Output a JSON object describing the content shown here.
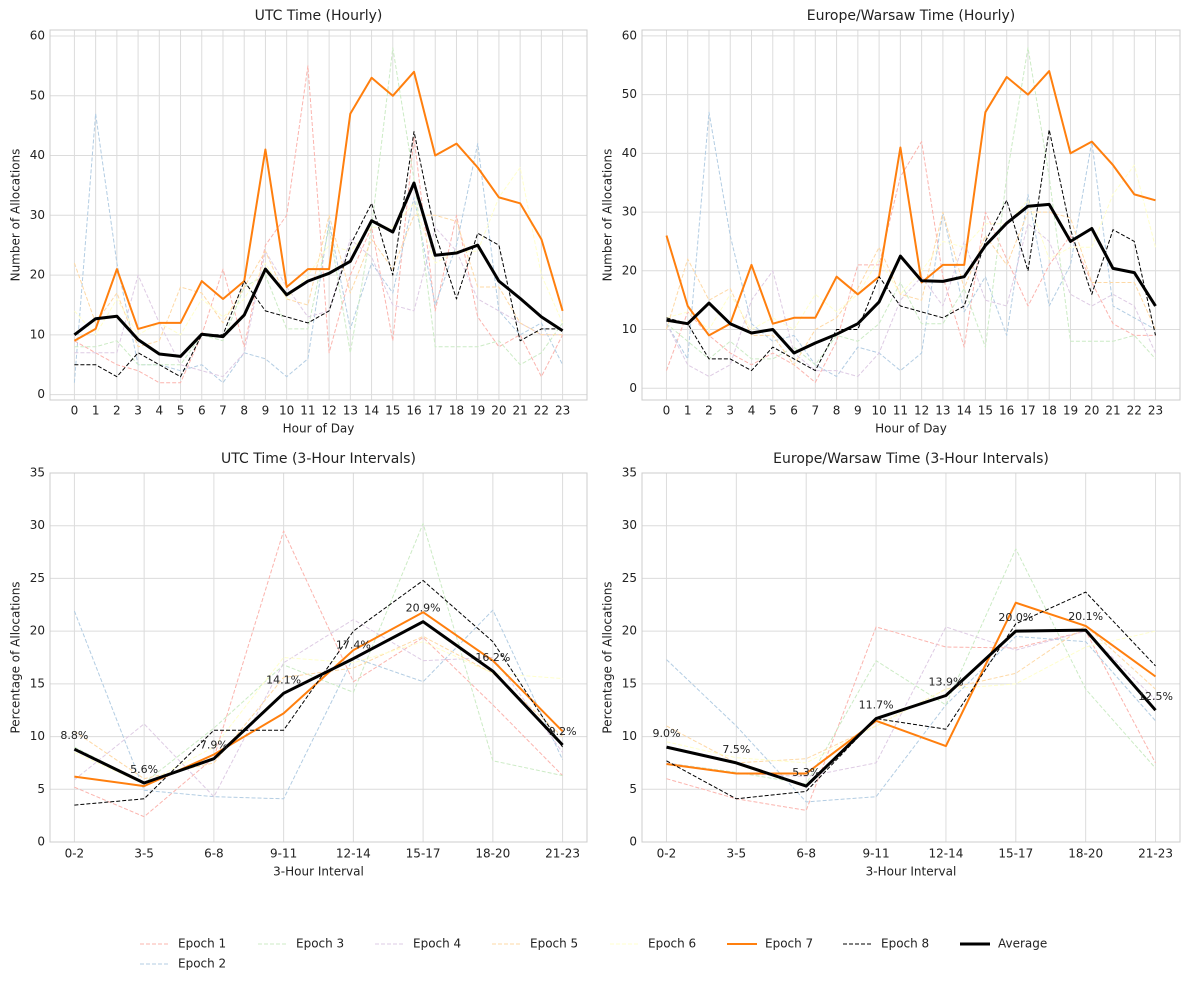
{
  "chart_data": [
    {
      "type": "line",
      "title": "UTC Time (Hourly)",
      "xlabel": "Hour of Day",
      "ylabel": "Number of Allocations",
      "x": [
        0,
        1,
        2,
        3,
        4,
        5,
        6,
        7,
        8,
        9,
        10,
        11,
        12,
        13,
        14,
        15,
        16,
        17,
        18,
        19,
        20,
        21,
        22,
        23
      ],
      "xlim": [
        -1.15,
        24.15
      ],
      "xticks": [
        0,
        1,
        2,
        3,
        4,
        5,
        6,
        7,
        8,
        9,
        10,
        11,
        12,
        13,
        14,
        15,
        16,
        17,
        18,
        19,
        20,
        21,
        22,
        23
      ],
      "ylim": [
        -0.9,
        61
      ],
      "yticks": [
        0,
        10,
        20,
        30,
        40,
        50,
        60
      ],
      "grid": true,
      "legend": "lower center",
      "series": [
        {
          "name": "Epoch 1",
          "color": "#fbb4ae",
          "linestyle": "dashed",
          "linewidth": 1,
          "values": [
            9,
            7,
            5,
            4,
            2,
            2,
            10,
            21,
            8,
            25,
            30,
            55,
            7,
            20,
            28,
            9,
            43,
            14,
            30,
            13,
            8,
            10,
            3,
            10
          ]
        },
        {
          "name": "Epoch 2",
          "color": "#b3cde3",
          "linestyle": "dashed",
          "linewidth": 1,
          "values": [
            2,
            47,
            22,
            5,
            5,
            4,
            5,
            2,
            7,
            6,
            3,
            6,
            29,
            11,
            22,
            17,
            33,
            15,
            25,
            42,
            14,
            10,
            12,
            5
          ]
        },
        {
          "name": "Epoch 3",
          "color": "#ccebc5",
          "linestyle": "dashed",
          "linewidth": 1,
          "values": [
            8,
            8,
            9,
            5,
            5,
            5,
            10,
            9,
            18,
            20,
            11,
            11,
            28,
            7,
            28,
            58,
            36,
            8,
            8,
            8,
            9,
            5,
            7,
            12
          ]
        },
        {
          "name": "Epoch 4",
          "color": "#decbe4",
          "linestyle": "dashed",
          "linewidth": 1,
          "values": [
            7,
            7,
            7,
            20,
            12,
            5,
            4,
            3,
            7,
            24,
            18,
            13,
            14,
            26,
            23,
            15,
            14,
            28,
            24,
            16,
            14,
            12,
            10,
            10
          ]
        },
        {
          "name": "Epoch 5",
          "color": "#fed9a6",
          "linestyle": "dashed",
          "linewidth": 1,
          "values": [
            22,
            12,
            17,
            8,
            9,
            18,
            17,
            12,
            18,
            24,
            16,
            15,
            30,
            17,
            26,
            21,
            30,
            30,
            29,
            18,
            18,
            12,
            10,
            10
          ]
        },
        {
          "name": "Epoch 6",
          "color": "#ffffcc",
          "linestyle": "dashed",
          "linewidth": 1,
          "values": [
            14,
            10,
            16,
            10,
            12,
            10,
            16,
            13,
            16,
            22,
            16,
            20,
            25,
            24,
            28,
            28,
            32,
            22,
            24,
            24,
            33,
            38,
            20,
            12
          ]
        },
        {
          "name": "Epoch 7",
          "color": "#ff7f0e",
          "linestyle": "solid",
          "linewidth": 2,
          "values": [
            9,
            11,
            21,
            11,
            12,
            12,
            19,
            16,
            19,
            41,
            18,
            21,
            21,
            47,
            53,
            50,
            54,
            40,
            42,
            38,
            33,
            32,
            26,
            14
          ]
        },
        {
          "name": "Epoch 8",
          "color": "#000000",
          "linestyle": "dashed",
          "linewidth": 1,
          "values": [
            5,
            5,
            3,
            7,
            5,
            3,
            10,
            10,
            19,
            14,
            13,
            12,
            14,
            25,
            32,
            20,
            44,
            27,
            16,
            27,
            25,
            9,
            11,
            11
          ]
        },
        {
          "name": "Average",
          "color": "#000000",
          "linestyle": "solid",
          "linewidth": 3,
          "values": [
            10,
            12.7,
            13.1,
            9.2,
            6.8,
            6.4,
            10.1,
            9.7,
            13.3,
            21,
            16.7,
            19,
            20.3,
            22.3,
            29.1,
            27.2,
            35.4,
            23.3,
            23.7,
            25,
            19,
            16.1,
            13,
            10.7
          ]
        }
      ]
    },
    {
      "type": "line",
      "title": "Europe/Warsaw Time (Hourly)",
      "xlabel": "Hour of Day",
      "ylabel": "Number of Allocations",
      "x": [
        0,
        1,
        2,
        3,
        4,
        5,
        6,
        7,
        8,
        9,
        10,
        11,
        12,
        13,
        14,
        15,
        16,
        17,
        18,
        19,
        20,
        21,
        22,
        23
      ],
      "xlim": [
        -1.15,
        24.15
      ],
      "xticks": [
        0,
        1,
        2,
        3,
        4,
        5,
        6,
        7,
        8,
        9,
        10,
        11,
        12,
        13,
        14,
        15,
        16,
        17,
        18,
        19,
        20,
        21,
        22,
        23
      ],
      "ylim": [
        -2,
        61
      ],
      "yticks": [
        0,
        10,
        20,
        30,
        40,
        50,
        60
      ],
      "grid": true,
      "series": [
        {
          "name": "Epoch 1",
          "color": "#fbb4ae",
          "linestyle": "dashed",
          "linewidth": 1,
          "values": [
            3,
            13,
            9,
            6,
            4,
            6,
            4,
            1,
            8,
            21,
            21,
            36,
            42,
            19,
            7,
            30,
            22,
            14,
            21,
            26,
            18,
            11,
            9,
            9
          ]
        },
        {
          "name": "Epoch 2",
          "color": "#b3cde3",
          "linestyle": "dashed",
          "linewidth": 1,
          "values": [
            11,
            5,
            47,
            26,
            11,
            8,
            9,
            4,
            2,
            7,
            6,
            3,
            6,
            30,
            13,
            19,
            9,
            33,
            14,
            21,
            42,
            14,
            12,
            10
          ]
        },
        {
          "name": "Epoch 3",
          "color": "#ccebc5",
          "linestyle": "dashed",
          "linewidth": 1,
          "values": [
            11,
            8,
            5,
            8,
            5,
            5,
            7,
            4,
            9,
            8,
            11,
            18,
            11,
            11,
            17,
            7,
            36,
            58,
            36,
            8,
            8,
            8,
            9,
            5
          ]
        },
        {
          "name": "Epoch 4",
          "color": "#decbe4",
          "linestyle": "dashed",
          "linewidth": 1,
          "values": [
            11,
            4,
            2,
            4,
            15,
            20,
            6,
            3,
            3,
            2,
            6,
            15,
            19,
            14,
            25,
            15,
            14,
            28,
            25,
            16,
            14,
            16,
            14,
            6
          ]
        },
        {
          "name": "Epoch 5",
          "color": "#fed9a6",
          "linestyle": "dashed",
          "linewidth": 1,
          "values": [
            10,
            22,
            15,
            17,
            9,
            9,
            4,
            10,
            12,
            17,
            24,
            16,
            15,
            30,
            17,
            26,
            21,
            30,
            30,
            29,
            18,
            18,
            18,
            10
          ]
        },
        {
          "name": "Epoch 6",
          "color": "#ffffcc",
          "linestyle": "dashed",
          "linewidth": 1,
          "values": [
            12,
            13,
            10,
            16,
            10,
            12,
            10,
            16,
            13,
            16,
            22,
            16,
            20,
            25,
            24,
            28,
            28,
            32,
            22,
            24,
            24,
            33,
            38,
            24
          ]
        },
        {
          "name": "Epoch 7",
          "color": "#ff7f0e",
          "linestyle": "solid",
          "linewidth": 2,
          "values": [
            26,
            14,
            9,
            11,
            21,
            11,
            12,
            12,
            19,
            16,
            19,
            41,
            18,
            21,
            21,
            47,
            53,
            50,
            54,
            40,
            42,
            38,
            33,
            32
          ]
        },
        {
          "name": "Epoch 8",
          "color": "#000000",
          "linestyle": "dashed",
          "linewidth": 1,
          "values": [
            12,
            11,
            5,
            5,
            3,
            7,
            5,
            3,
            10,
            10,
            19,
            14,
            13,
            12,
            14,
            25,
            32,
            20,
            44,
            27,
            16,
            27,
            25,
            9
          ]
        },
        {
          "name": "Average",
          "color": "#000000",
          "linestyle": "solid",
          "linewidth": 3,
          "values": [
            11.6,
            11,
            14.5,
            11,
            9.4,
            10,
            6,
            7.7,
            9.2,
            11,
            14.7,
            22.5,
            18.3,
            18.2,
            19,
            24.3,
            28.1,
            31,
            31.3,
            25,
            27.2,
            20.4,
            19.7,
            14
          ]
        }
      ]
    },
    {
      "type": "line",
      "title": "UTC Time (3-Hour Intervals)",
      "xlabel": "3-Hour Interval",
      "ylabel": "Percentage of Allocations",
      "categories": [
        "0-2",
        "3-5",
        "6-8",
        "9-11",
        "12-14",
        "15-17",
        "18-20",
        "21-23"
      ],
      "ylim": [
        0,
        35
      ],
      "yticks": [
        0,
        5,
        10,
        15,
        20,
        25,
        30,
        35
      ],
      "grid": true,
      "series": [
        {
          "name": "Epoch 1",
          "color": "#fbb4ae",
          "linestyle": "dashed",
          "linewidth": 1,
          "values": [
            5.2,
            2.4,
            8.0,
            29.5,
            15.2,
            19.4,
            13.0,
            6.3
          ]
        },
        {
          "name": "Epoch 2",
          "color": "#b3cde3",
          "linestyle": "dashed",
          "linewidth": 1,
          "values": [
            21.9,
            4.9,
            4.3,
            4.1,
            17.5,
            15.2,
            22.0,
            7.8
          ]
        },
        {
          "name": "Epoch 3",
          "color": "#ccebc5",
          "linestyle": "dashed",
          "linewidth": 1,
          "values": [
            9.0,
            5.6,
            10.8,
            16.8,
            14.2,
            30.2,
            7.7,
            6.3
          ]
        },
        {
          "name": "Epoch 4",
          "color": "#decbe4",
          "linestyle": "dashed",
          "linewidth": 1,
          "values": [
            5.9,
            11.2,
            4.3,
            17.0,
            21.1,
            17.2,
            17.5,
            8.5
          ]
        },
        {
          "name": "Epoch 5",
          "color": "#fed9a6",
          "linestyle": "dashed",
          "linewidth": 1,
          "values": [
            10.5,
            6.0,
            7.5,
            15.6,
            16.5,
            19.5,
            16.0,
            10.0
          ]
        },
        {
          "name": "Epoch 6",
          "color": "#ffffcc",
          "linestyle": "dashed",
          "linewidth": 1,
          "values": [
            8.5,
            5.5,
            9.0,
            17.5,
            17.0,
            19.0,
            16.0,
            15.5
          ]
        },
        {
          "name": "Epoch 7",
          "color": "#ff7f0e",
          "linestyle": "solid",
          "linewidth": 2,
          "values": [
            6.2,
            5.3,
            8.3,
            12.2,
            18.2,
            21.8,
            17.2,
            10.5
          ]
        },
        {
          "name": "Epoch 8",
          "color": "#000000",
          "linestyle": "dashed",
          "linewidth": 1,
          "values": [
            3.5,
            4.1,
            10.6,
            10.6,
            20.0,
            24.8,
            19.0,
            9.0
          ]
        },
        {
          "name": "Average",
          "color": "#000000",
          "linestyle": "solid",
          "linewidth": 3,
          "values": [
            8.8,
            5.6,
            7.9,
            14.1,
            17.4,
            20.9,
            16.2,
            9.2
          ],
          "value_labels": [
            "8.8%",
            "5.6%",
            "7.9%",
            "14.1%",
            "17.4%",
            "20.9%",
            "16.2%",
            "9.2%"
          ]
        }
      ]
    },
    {
      "type": "line",
      "title": "Europe/Warsaw Time (3-Hour Intervals)",
      "xlabel": "3-Hour Interval",
      "ylabel": "Percentage of Allocations",
      "categories": [
        "0-2",
        "3-5",
        "6-8",
        "9-11",
        "12-14",
        "15-17",
        "18-20",
        "21-23"
      ],
      "ylim": [
        0,
        35
      ],
      "yticks": [
        0,
        5,
        10,
        15,
        20,
        25,
        30,
        35
      ],
      "grid": true,
      "series": [
        {
          "name": "Epoch 1",
          "color": "#fbb4ae",
          "linestyle": "dashed",
          "linewidth": 1,
          "values": [
            6.0,
            4.1,
            3.0,
            20.4,
            18.5,
            18.4,
            20.0,
            7.5
          ]
        },
        {
          "name": "Epoch 2",
          "color": "#b3cde3",
          "linestyle": "dashed",
          "linewidth": 1,
          "values": [
            17.3,
            11.0,
            3.8,
            4.3,
            13.0,
            19.5,
            19.0,
            11.5
          ]
        },
        {
          "name": "Epoch 3",
          "color": "#ccebc5",
          "linestyle": "dashed",
          "linewidth": 1,
          "values": [
            7.5,
            6.6,
            5.5,
            17.2,
            13.0,
            27.8,
            14.5,
            7.0
          ]
        },
        {
          "name": "Epoch 4",
          "color": "#decbe4",
          "linestyle": "dashed",
          "linewidth": 1,
          "values": [
            7.5,
            6.5,
            6.2,
            7.5,
            20.4,
            18.2,
            20.0,
            13.5
          ]
        },
        {
          "name": "Epoch 5",
          "color": "#fed9a6",
          "linestyle": "dashed",
          "linewidth": 1,
          "values": [
            11.0,
            7.5,
            7.9,
            11.0,
            14.5,
            16.0,
            20.5,
            14.5
          ]
        },
        {
          "name": "Epoch 6",
          "color": "#ffffcc",
          "linestyle": "dashed",
          "linewidth": 1,
          "values": [
            9.5,
            8.0,
            7.5,
            11.0,
            14.5,
            15.0,
            18.5,
            20.0
          ]
        },
        {
          "name": "Epoch 7",
          "color": "#ff7f0e",
          "linestyle": "solid",
          "linewidth": 2,
          "values": [
            7.4,
            6.5,
            6.5,
            11.5,
            9.1,
            22.7,
            20.5,
            15.7
          ]
        },
        {
          "name": "Epoch 8",
          "color": "#000000",
          "linestyle": "dashed",
          "linewidth": 1,
          "values": [
            7.7,
            4.1,
            4.8,
            11.7,
            10.7,
            20.7,
            23.7,
            16.7
          ]
        },
        {
          "name": "Average",
          "color": "#000000",
          "linestyle": "solid",
          "linewidth": 3,
          "values": [
            9.0,
            7.5,
            5.3,
            11.7,
            13.9,
            20.0,
            20.1,
            12.5
          ],
          "value_labels": [
            "9.0%",
            "7.5%",
            "5.3%",
            "11.7%",
            "13.9%",
            "20.0%",
            "20.1%",
            "12.5%"
          ]
        }
      ]
    }
  ]
}
